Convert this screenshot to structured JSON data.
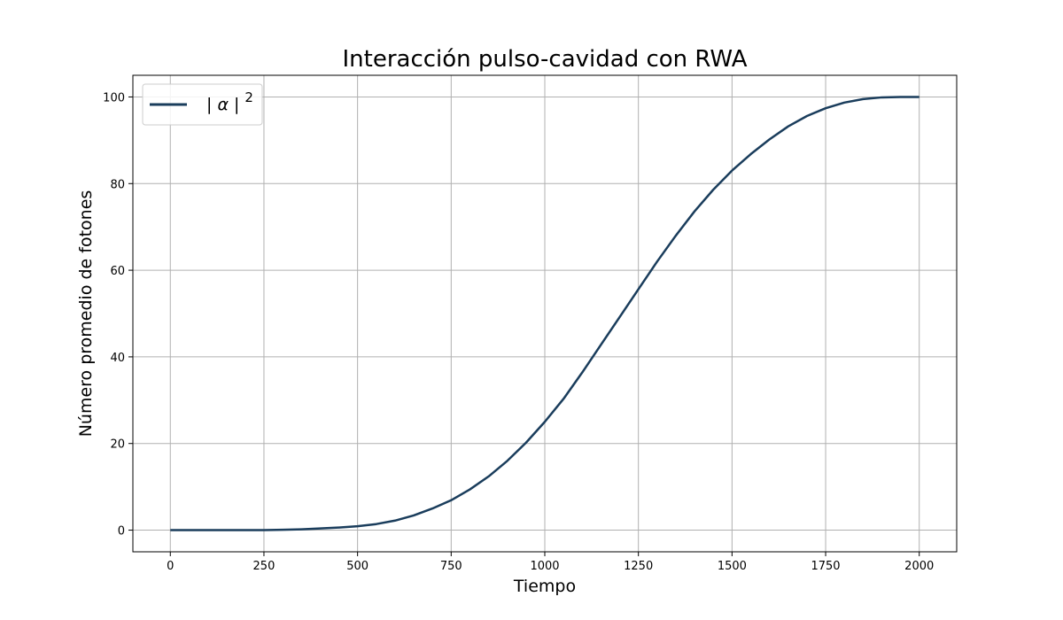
{
  "chart_data": {
    "type": "line",
    "title": "Interacción pulso-cavidad con RWA",
    "xlabel": "Tiempo",
    "ylabel": "Número promedio de fotones",
    "xlim": [
      -100,
      2100
    ],
    "ylim": [
      -5,
      105
    ],
    "xticks": [
      0,
      250,
      500,
      750,
      1000,
      1250,
      1500,
      1750,
      2000
    ],
    "yticks": [
      0,
      20,
      40,
      60,
      80,
      100
    ],
    "grid": true,
    "legend_position": "top-left",
    "series": [
      {
        "name": "| α | 2",
        "legend_base": "| α |",
        "legend_sup": "2",
        "color": "#1a3d5c",
        "x": [
          0,
          100,
          200,
          250,
          300,
          350,
          400,
          450,
          500,
          550,
          600,
          650,
          700,
          750,
          800,
          850,
          900,
          950,
          1000,
          1050,
          1100,
          1150,
          1200,
          1250,
          1300,
          1350,
          1400,
          1450,
          1500,
          1550,
          1600,
          1650,
          1700,
          1750,
          1800,
          1850,
          1900,
          1950,
          2000
        ],
        "y": [
          0,
          0,
          0,
          0.02,
          0.08,
          0.2,
          0.4,
          0.6,
          0.9,
          1.4,
          2.2,
          3.4,
          5.0,
          6.9,
          9.4,
          12.4,
          16.0,
          20.2,
          25.0,
          30.3,
          36.4,
          42.8,
          49.2,
          55.6,
          62.0,
          68.0,
          73.6,
          78.6,
          83.0,
          86.8,
          90.2,
          93.2,
          95.6,
          97.4,
          98.7,
          99.5,
          99.9,
          100.0,
          100.0
        ]
      }
    ]
  }
}
